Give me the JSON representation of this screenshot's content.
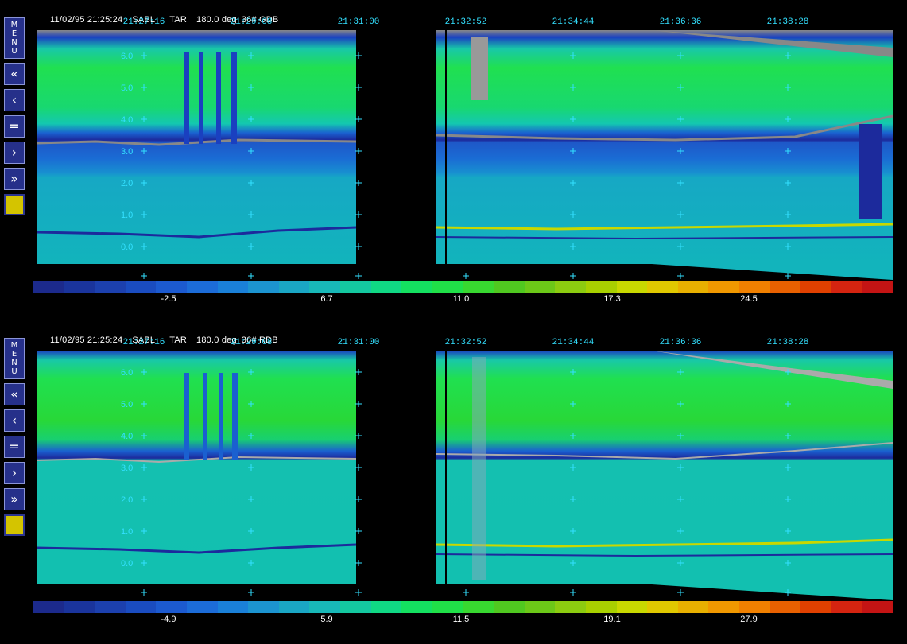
{
  "panels": [
    {
      "header": {
        "datetime": "11/02/95 21:25:24",
        "site": "SABL",
        "mode": "TAR",
        "angle": "180.0 deg",
        "channel": "36# GDB"
      },
      "times": [
        "21:27:16",
        "21:29:08",
        "21:31:00",
        "21:32:52",
        "21:34:44",
        "21:36:36",
        "21:38:28"
      ],
      "y_ticks": [
        "6.0",
        "5.0",
        "4.0",
        "3.0",
        "2.0",
        "1.0",
        "0.0"
      ],
      "colorbar_labels": [
        "-2.5",
        "6.7",
        "11.0",
        "17.3",
        "24.5"
      ],
      "menu_label": [
        "M",
        "E",
        "N",
        "U"
      ],
      "buttons": [
        "«",
        "‹",
        "=",
        "›",
        "»"
      ]
    },
    {
      "header": {
        "datetime": "11/02/95 21:25:24",
        "site": "SABL",
        "mode": "TAR",
        "angle": "180.0 deg",
        "channel": "36# RDB"
      },
      "times": [
        "21:27:16",
        "21:29:08",
        "21:31:00",
        "21:32:52",
        "21:34:44",
        "21:36:36",
        "21:38:28"
      ],
      "y_ticks": [
        "6.0",
        "5.0",
        "4.0",
        "3.0",
        "2.0",
        "1.0",
        "0.0"
      ],
      "colorbar_labels": [
        "-4.9",
        "5.9",
        "11.5",
        "19.1",
        "27.9"
      ],
      "menu_label": [
        "M",
        "E",
        "N",
        "U"
      ],
      "buttons": [
        "«",
        "‹",
        "=",
        "›",
        "»"
      ]
    }
  ],
  "colorbar_colors": [
    "#1c2a8c",
    "#1a349c",
    "#1c40ae",
    "#1a4cc0",
    "#1c5ad0",
    "#1c6cd8",
    "#1a80d8",
    "#1c94d0",
    "#1aa6c4",
    "#18b8b8",
    "#14c8a0",
    "#10d884",
    "#14e060",
    "#20e048",
    "#38d830",
    "#50c820",
    "#6cc818",
    "#8ccc10",
    "#a8d000",
    "#c8d800",
    "#e0c800",
    "#e8b000",
    "#f09800",
    "#f08000",
    "#e86000",
    "#e04000",
    "#d42410",
    "#c41414"
  ],
  "colors": {
    "cyan_text": "#33e0ff",
    "button_blue": "#26308a",
    "indicator": "#d4c400"
  }
}
